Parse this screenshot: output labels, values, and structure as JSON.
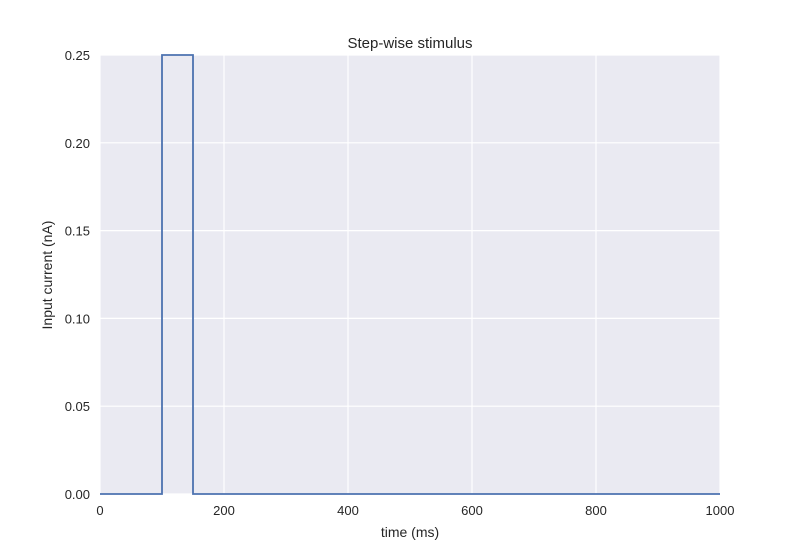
{
  "chart_data": {
    "type": "line",
    "title": "Step-wise stimulus",
    "xlabel": "time (ms)",
    "ylabel": "Input current (nA)",
    "xlim": [
      0,
      1000
    ],
    "ylim": [
      0,
      0.25
    ],
    "xticks": [
      0,
      200,
      400,
      600,
      800,
      1000
    ],
    "xtick_labels": [
      "0",
      "200",
      "400",
      "600",
      "800",
      "1000"
    ],
    "yticks": [
      0,
      0.05,
      0.1,
      0.15,
      0.2,
      0.25
    ],
    "ytick_labels": [
      "0.00",
      "0.05",
      "0.10",
      "0.15",
      "0.20",
      "0.25"
    ],
    "grid": true,
    "background": "#eaeaf2",
    "grid_color": "#ffffff",
    "series": [
      {
        "color": "#4c72b0",
        "x": [
          0,
          100,
          100,
          150,
          150,
          1000
        ],
        "y": [
          0,
          0,
          0.25,
          0.25,
          0,
          0
        ]
      }
    ]
  }
}
